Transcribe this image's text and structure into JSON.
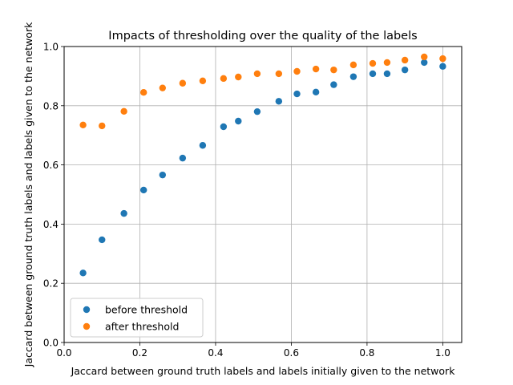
{
  "chart_data": {
    "type": "scatter",
    "title": "Impacts of thresholding over the quality of the labels",
    "xlabel": "Jaccard between ground truth labels and labels initially given to the network",
    "ylabel": "Jaccard between ground truth labels and labels given to the network",
    "xlim": [
      0.0,
      1.05
    ],
    "ylim": [
      0.0,
      1.0
    ],
    "xticks": [
      "0.0",
      "0.2",
      "0.4",
      "0.6",
      "0.8",
      "1.0"
    ],
    "yticks": [
      "0.0",
      "0.2",
      "0.4",
      "0.6",
      "0.8",
      "1.0"
    ],
    "grid": true,
    "legend_position": "lower-left",
    "series": [
      {
        "name": "before threshold",
        "color": "#1f77b4",
        "points": [
          [
            0.05,
            0.235
          ],
          [
            0.1,
            0.347
          ],
          [
            0.158,
            0.436
          ],
          [
            0.21,
            0.515
          ],
          [
            0.26,
            0.566
          ],
          [
            0.313,
            0.623
          ],
          [
            0.366,
            0.666
          ],
          [
            0.421,
            0.729
          ],
          [
            0.46,
            0.748
          ],
          [
            0.51,
            0.78
          ],
          [
            0.567,
            0.815
          ],
          [
            0.615,
            0.84
          ],
          [
            0.665,
            0.846
          ],
          [
            0.712,
            0.871
          ],
          [
            0.764,
            0.898
          ],
          [
            0.815,
            0.908
          ],
          [
            0.853,
            0.908
          ],
          [
            0.9,
            0.921
          ],
          [
            0.951,
            0.946
          ],
          [
            1.0,
            0.933
          ]
        ]
      },
      {
        "name": "after threshold",
        "color": "#ff7f0e",
        "points": [
          [
            0.05,
            0.735
          ],
          [
            0.1,
            0.732
          ],
          [
            0.158,
            0.781
          ],
          [
            0.21,
            0.845
          ],
          [
            0.26,
            0.86
          ],
          [
            0.313,
            0.876
          ],
          [
            0.366,
            0.884
          ],
          [
            0.421,
            0.892
          ],
          [
            0.46,
            0.897
          ],
          [
            0.51,
            0.908
          ],
          [
            0.567,
            0.908
          ],
          [
            0.615,
            0.916
          ],
          [
            0.665,
            0.924
          ],
          [
            0.712,
            0.921
          ],
          [
            0.764,
            0.938
          ],
          [
            0.815,
            0.943
          ],
          [
            0.853,
            0.946
          ],
          [
            0.9,
            0.954
          ],
          [
            0.951,
            0.965
          ],
          [
            1.0,
            0.959
          ]
        ]
      }
    ]
  }
}
